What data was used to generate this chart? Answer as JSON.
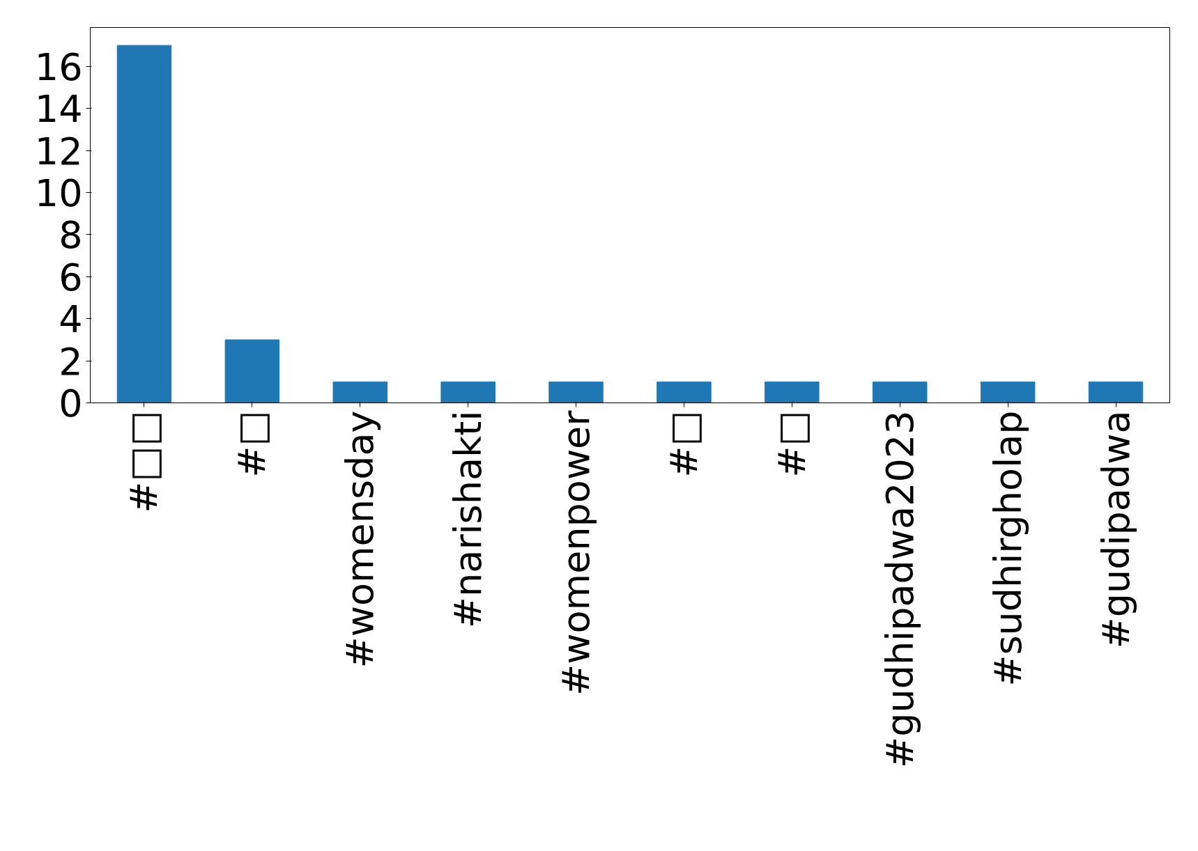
{
  "chart_data": {
    "type": "bar",
    "categories": [
      "#□□",
      "#□",
      "#womensday",
      "#narishakti",
      "#womenpower",
      "#□",
      "#□",
      "#gudhipadwa2023",
      "#sudhirgholap",
      "#gudipadwa"
    ],
    "values": [
      17,
      3,
      1,
      1,
      1,
      1,
      1,
      1,
      1,
      1
    ],
    "color": "#1f77b4",
    "ylim": [
      0,
      17.85
    ],
    "yticks": [
      0,
      2,
      4,
      6,
      8,
      10,
      12,
      14,
      16
    ],
    "grid": false
  }
}
